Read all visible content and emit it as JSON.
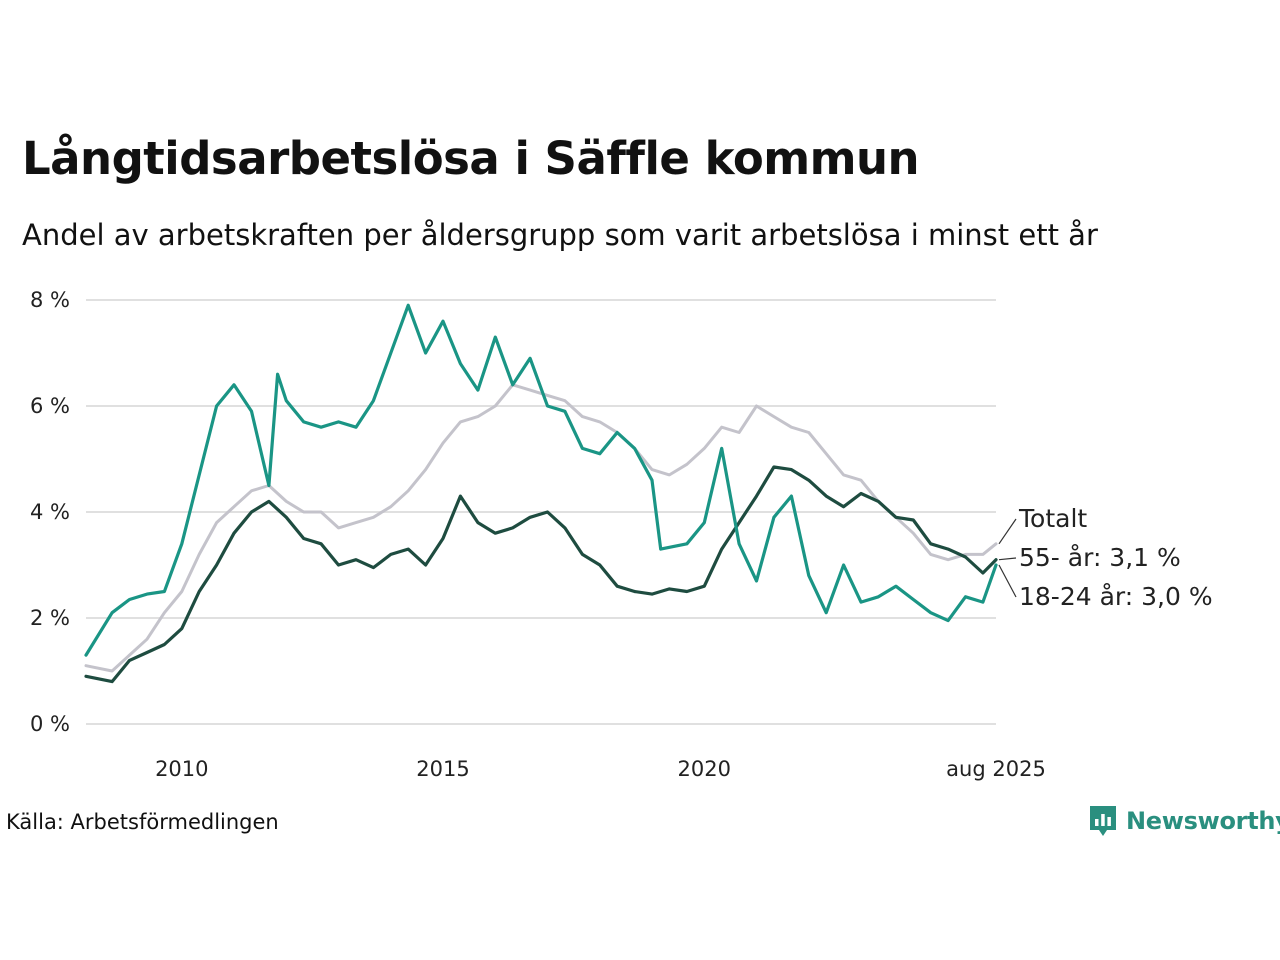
{
  "header": {
    "title": "Långtidsarbetslösa i Säffle kommun",
    "subtitle": "Andel av arbetskraften per åldersgrupp som varit arbetslösa i minst ett år"
  },
  "footer": {
    "source": "Källa: Arbetsförmedlingen",
    "brand": "Newsworthy"
  },
  "colors": {
    "totalt": "#c4c3cb",
    "age55": "#1e4c40",
    "age1824": "#1a9585",
    "grid": "#e0e0e0"
  },
  "chart_data": {
    "type": "line",
    "x_range": [
      "2008-03",
      "2025-08"
    ],
    "ylim": [
      0,
      8
    ],
    "y_ticks": [
      0,
      2,
      4,
      6,
      8
    ],
    "y_tick_labels": [
      "0 %",
      "2 %",
      "4 %",
      "6 %",
      "8 %"
    ],
    "x_ticks": [
      "2010-01",
      "2015-01",
      "2020-01",
      "2025-08"
    ],
    "x_tick_labels": [
      "2010",
      "2015",
      "2020",
      "aug 2025"
    ],
    "grid": true,
    "series": [
      {
        "key": "totalt",
        "name": "Totalt",
        "end_label": "Totalt",
        "points": [
          [
            "2008-03",
            1.1
          ],
          [
            "2008-09",
            1.0
          ],
          [
            "2009-01",
            1.3
          ],
          [
            "2009-05",
            1.6
          ],
          [
            "2009-09",
            2.1
          ],
          [
            "2010-01",
            2.5
          ],
          [
            "2010-05",
            3.2
          ],
          [
            "2010-09",
            3.8
          ],
          [
            "2011-01",
            4.1
          ],
          [
            "2011-05",
            4.4
          ],
          [
            "2011-09",
            4.5
          ],
          [
            "2012-01",
            4.2
          ],
          [
            "2012-05",
            4.0
          ],
          [
            "2012-09",
            4.0
          ],
          [
            "2013-01",
            3.7
          ],
          [
            "2013-05",
            3.8
          ],
          [
            "2013-09",
            3.9
          ],
          [
            "2014-01",
            4.1
          ],
          [
            "2014-05",
            4.4
          ],
          [
            "2014-09",
            4.8
          ],
          [
            "2015-01",
            5.3
          ],
          [
            "2015-05",
            5.7
          ],
          [
            "2015-09",
            5.8
          ],
          [
            "2016-01",
            6.0
          ],
          [
            "2016-05",
            6.4
          ],
          [
            "2016-09",
            6.3
          ],
          [
            "2017-01",
            6.2
          ],
          [
            "2017-05",
            6.1
          ],
          [
            "2017-09",
            5.8
          ],
          [
            "2018-01",
            5.7
          ],
          [
            "2018-05",
            5.5
          ],
          [
            "2018-09",
            5.2
          ],
          [
            "2019-01",
            4.8
          ],
          [
            "2019-05",
            4.7
          ],
          [
            "2019-09",
            4.9
          ],
          [
            "2020-01",
            5.2
          ],
          [
            "2020-05",
            5.6
          ],
          [
            "2020-09",
            5.5
          ],
          [
            "2021-01",
            6.0
          ],
          [
            "2021-05",
            5.8
          ],
          [
            "2021-09",
            5.6
          ],
          [
            "2022-01",
            5.5
          ],
          [
            "2022-05",
            5.1
          ],
          [
            "2022-09",
            4.7
          ],
          [
            "2023-01",
            4.6
          ],
          [
            "2023-05",
            4.2
          ],
          [
            "2023-09",
            3.9
          ],
          [
            "2024-01",
            3.6
          ],
          [
            "2024-05",
            3.2
          ],
          [
            "2024-09",
            3.1
          ],
          [
            "2025-01",
            3.2
          ],
          [
            "2025-05",
            3.2
          ],
          [
            "2025-08",
            3.4
          ]
        ]
      },
      {
        "key": "age55",
        "name": "55- år",
        "end_label": "55- år: 3,1 %",
        "points": [
          [
            "2008-03",
            0.9
          ],
          [
            "2008-09",
            0.8
          ],
          [
            "2009-01",
            1.2
          ],
          [
            "2009-05",
            1.35
          ],
          [
            "2009-09",
            1.5
          ],
          [
            "2010-01",
            1.8
          ],
          [
            "2010-05",
            2.5
          ],
          [
            "2010-09",
            3.0
          ],
          [
            "2011-01",
            3.6
          ],
          [
            "2011-05",
            4.0
          ],
          [
            "2011-09",
            4.2
          ],
          [
            "2012-01",
            3.9
          ],
          [
            "2012-05",
            3.5
          ],
          [
            "2012-09",
            3.4
          ],
          [
            "2013-01",
            3.0
          ],
          [
            "2013-05",
            3.1
          ],
          [
            "2013-09",
            2.95
          ],
          [
            "2014-01",
            3.2
          ],
          [
            "2014-05",
            3.3
          ],
          [
            "2014-09",
            3.0
          ],
          [
            "2015-01",
            3.5
          ],
          [
            "2015-05",
            4.3
          ],
          [
            "2015-09",
            3.8
          ],
          [
            "2016-01",
            3.6
          ],
          [
            "2016-05",
            3.7
          ],
          [
            "2016-09",
            3.9
          ],
          [
            "2017-01",
            4.0
          ],
          [
            "2017-05",
            3.7
          ],
          [
            "2017-09",
            3.2
          ],
          [
            "2018-01",
            3.0
          ],
          [
            "2018-05",
            2.6
          ],
          [
            "2018-09",
            2.5
          ],
          [
            "2019-01",
            2.45
          ],
          [
            "2019-05",
            2.55
          ],
          [
            "2019-09",
            2.5
          ],
          [
            "2020-01",
            2.6
          ],
          [
            "2020-05",
            3.3
          ],
          [
            "2020-09",
            3.8
          ],
          [
            "2021-01",
            4.3
          ],
          [
            "2021-05",
            4.85
          ],
          [
            "2021-09",
            4.8
          ],
          [
            "2022-01",
            4.6
          ],
          [
            "2022-05",
            4.3
          ],
          [
            "2022-09",
            4.1
          ],
          [
            "2023-01",
            4.35
          ],
          [
            "2023-05",
            4.2
          ],
          [
            "2023-09",
            3.9
          ],
          [
            "2024-01",
            3.85
          ],
          [
            "2024-05",
            3.4
          ],
          [
            "2024-09",
            3.3
          ],
          [
            "2025-01",
            3.15
          ],
          [
            "2025-05",
            2.85
          ],
          [
            "2025-08",
            3.1
          ]
        ]
      },
      {
        "key": "age1824",
        "name": "18-24 år",
        "end_label": "18-24 år: 3,0 %",
        "points": [
          [
            "2008-03",
            1.3
          ],
          [
            "2008-09",
            2.1
          ],
          [
            "2009-01",
            2.35
          ],
          [
            "2009-05",
            2.45
          ],
          [
            "2009-09",
            2.5
          ],
          [
            "2010-01",
            3.4
          ],
          [
            "2010-05",
            4.7
          ],
          [
            "2010-09",
            6.0
          ],
          [
            "2011-01",
            6.4
          ],
          [
            "2011-05",
            5.9
          ],
          [
            "2011-09",
            4.5
          ],
          [
            "2011-11",
            6.6
          ],
          [
            "2012-01",
            6.1
          ],
          [
            "2012-05",
            5.7
          ],
          [
            "2012-09",
            5.6
          ],
          [
            "2013-01",
            5.7
          ],
          [
            "2013-05",
            5.6
          ],
          [
            "2013-09",
            6.1
          ],
          [
            "2014-01",
            7.0
          ],
          [
            "2014-05",
            7.9
          ],
          [
            "2014-09",
            7.0
          ],
          [
            "2015-01",
            7.6
          ],
          [
            "2015-05",
            6.8
          ],
          [
            "2015-09",
            6.3
          ],
          [
            "2016-01",
            7.3
          ],
          [
            "2016-05",
            6.4
          ],
          [
            "2016-09",
            6.9
          ],
          [
            "2017-01",
            6.0
          ],
          [
            "2017-05",
            5.9
          ],
          [
            "2017-09",
            5.2
          ],
          [
            "2018-01",
            5.1
          ],
          [
            "2018-05",
            5.5
          ],
          [
            "2018-09",
            5.2
          ],
          [
            "2019-01",
            4.6
          ],
          [
            "2019-03",
            3.3
          ],
          [
            "2019-09",
            3.4
          ],
          [
            "2020-01",
            3.8
          ],
          [
            "2020-05",
            5.2
          ],
          [
            "2020-09",
            3.4
          ],
          [
            "2021-01",
            2.7
          ],
          [
            "2021-05",
            3.9
          ],
          [
            "2021-09",
            4.3
          ],
          [
            "2022-01",
            2.8
          ],
          [
            "2022-05",
            2.1
          ],
          [
            "2022-09",
            3.0
          ],
          [
            "2023-01",
            2.3
          ],
          [
            "2023-05",
            2.4
          ],
          [
            "2023-09",
            2.6
          ],
          [
            "2024-01",
            2.35
          ],
          [
            "2024-05",
            2.1
          ],
          [
            "2024-09",
            1.95
          ],
          [
            "2025-01",
            2.4
          ],
          [
            "2025-05",
            2.3
          ],
          [
            "2025-08",
            3.0
          ]
        ]
      }
    ]
  }
}
